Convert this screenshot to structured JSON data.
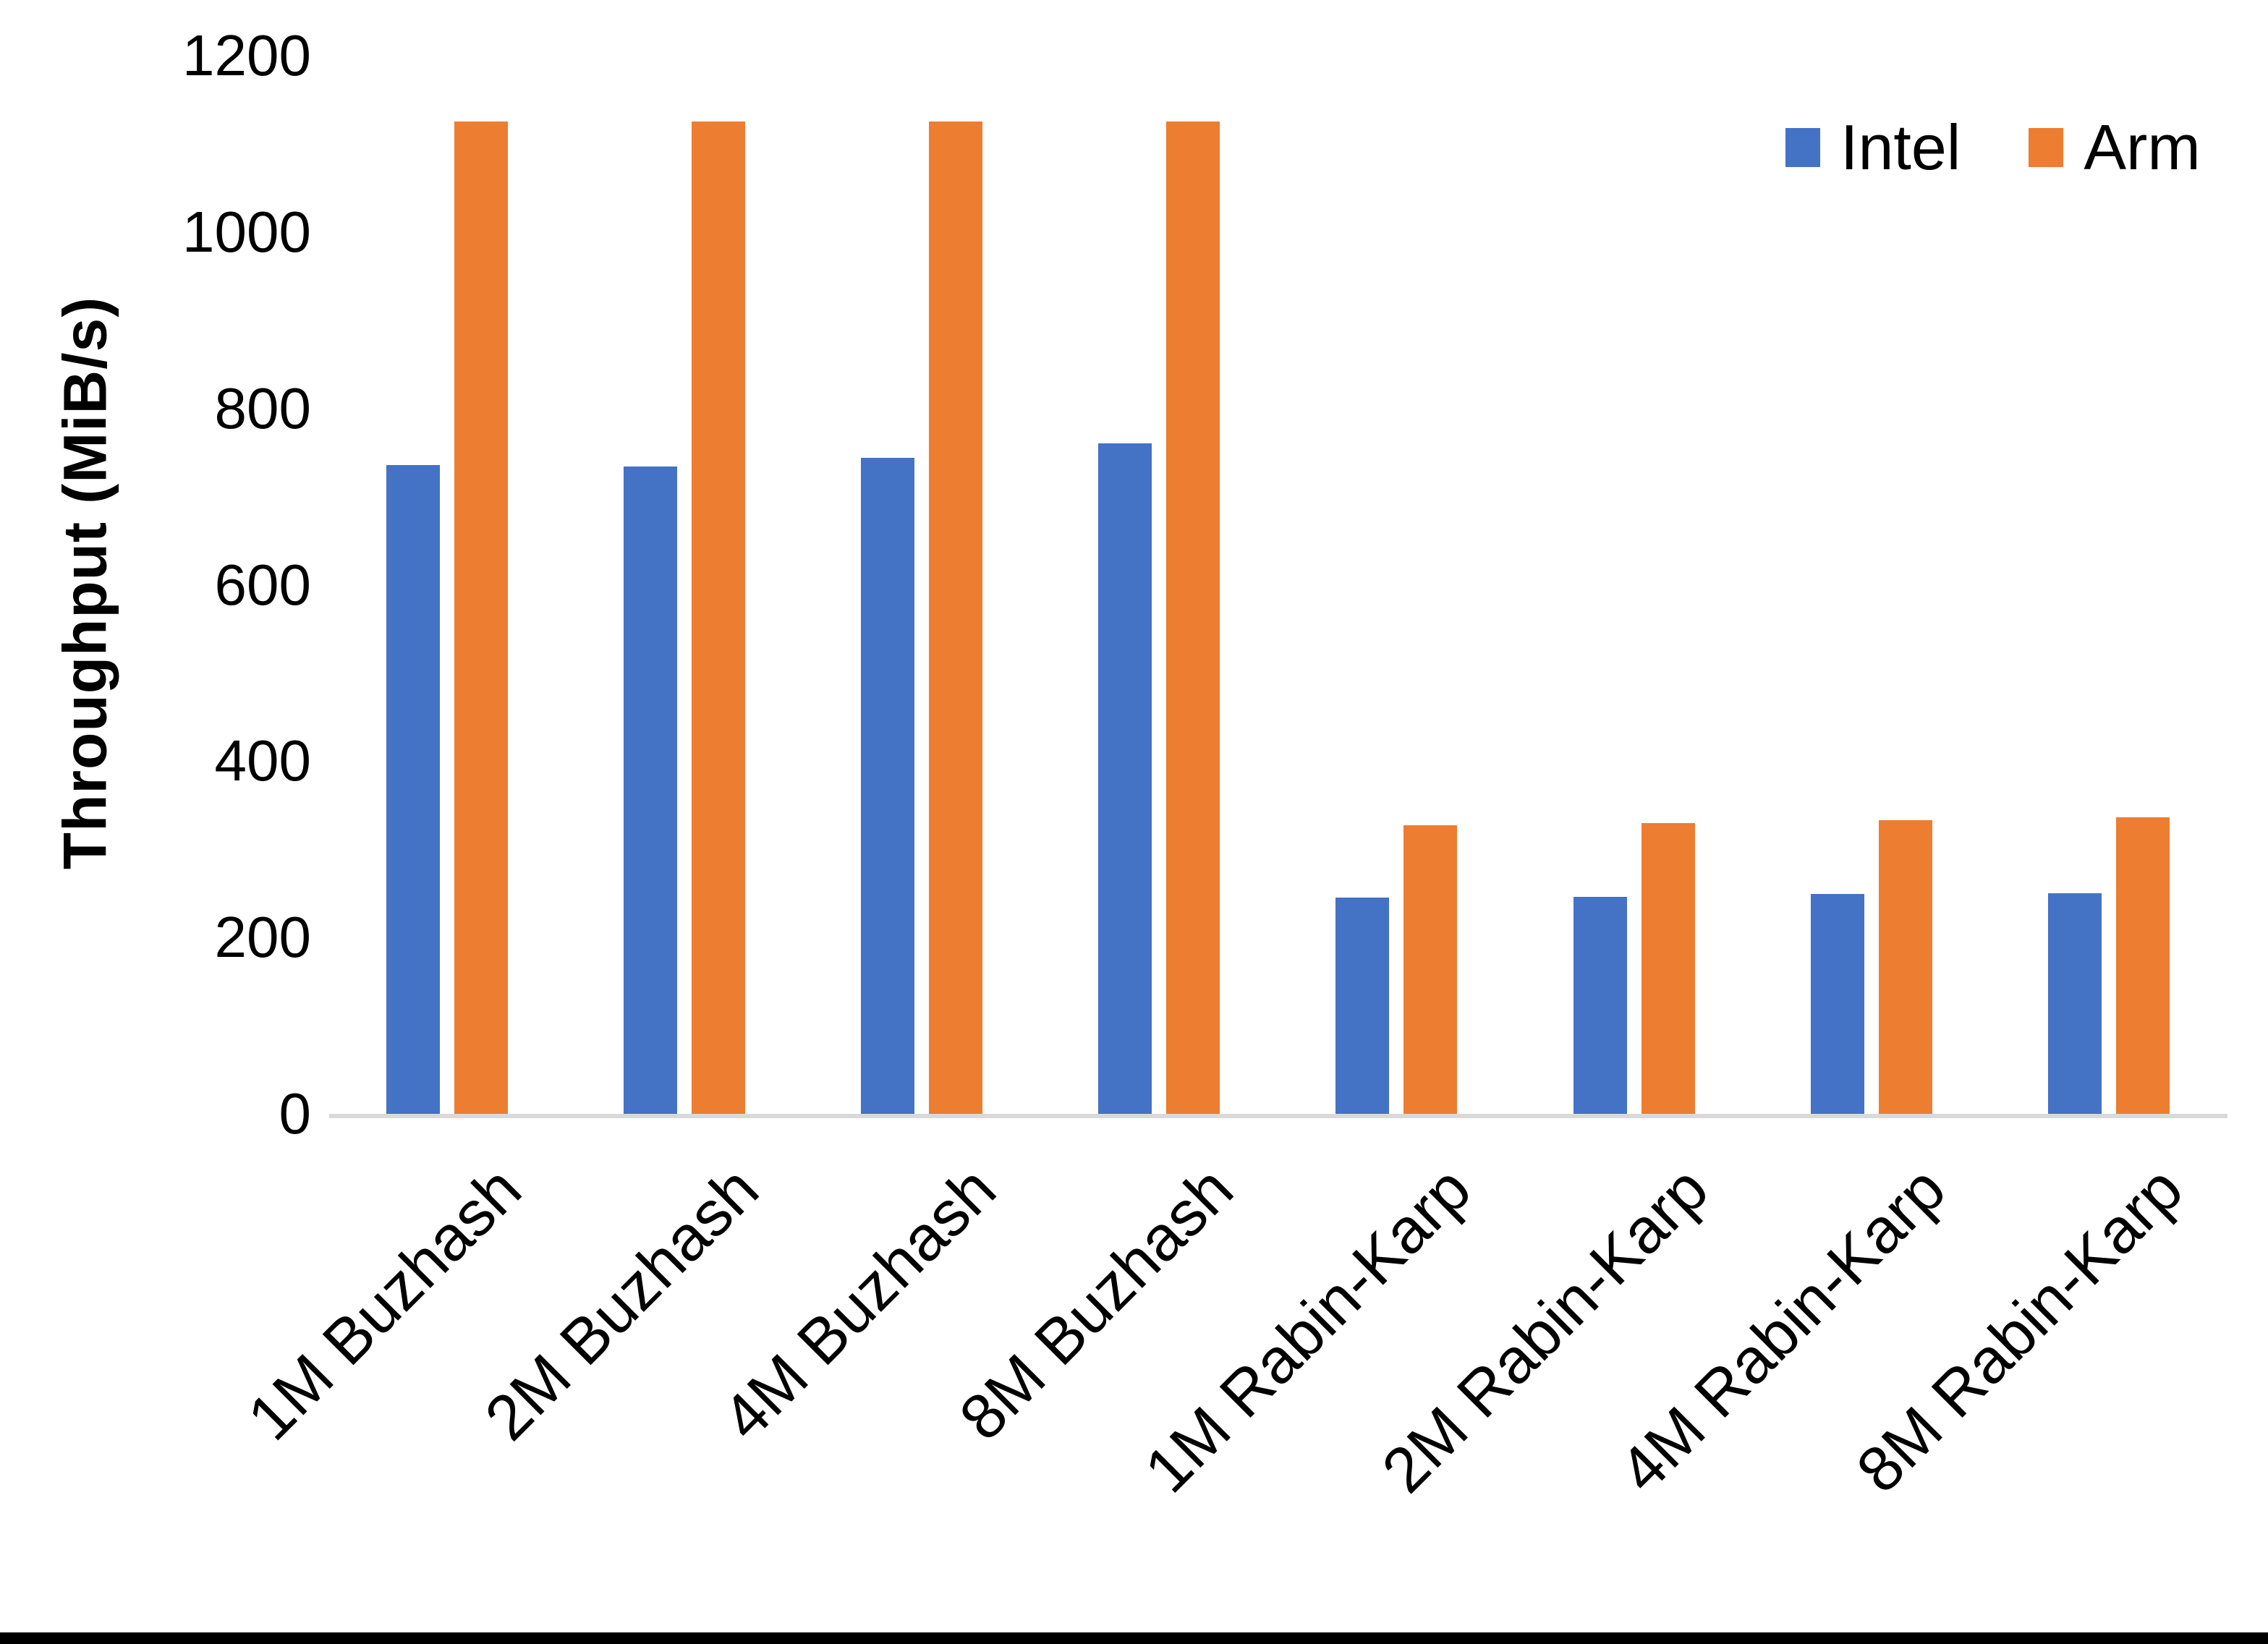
{
  "chart_data": {
    "type": "bar",
    "title": "",
    "xlabel": "",
    "ylabel": "Throughput (MiB/s)",
    "ylim": [
      0,
      1200
    ],
    "yticks": [
      0,
      200,
      400,
      600,
      800,
      1000,
      1200
    ],
    "grid": false,
    "legend_position": "top-right",
    "axis_line_color": "#D9D9D9",
    "background_color": "#FFFFFF",
    "bottom_border_color": "#000000",
    "categories": [
      "1M Buzhash",
      "2M Buzhash",
      "4M Buzhash",
      "8M Buzhash",
      "1M Rabin-Karp",
      "2M Rabin-Karp",
      "4M Rabin-Karp",
      "8M Rabin-Karp"
    ],
    "series": [
      {
        "name": "Intel",
        "color": "#4472C4",
        "values": [
          736,
          734,
          744,
          760,
          245,
          246,
          249,
          250
        ]
      },
      {
        "name": "Arm",
        "color": "#ED7D31",
        "values": [
          1125,
          1125,
          1125,
          1125,
          327,
          330,
          333,
          336
        ]
      }
    ]
  }
}
